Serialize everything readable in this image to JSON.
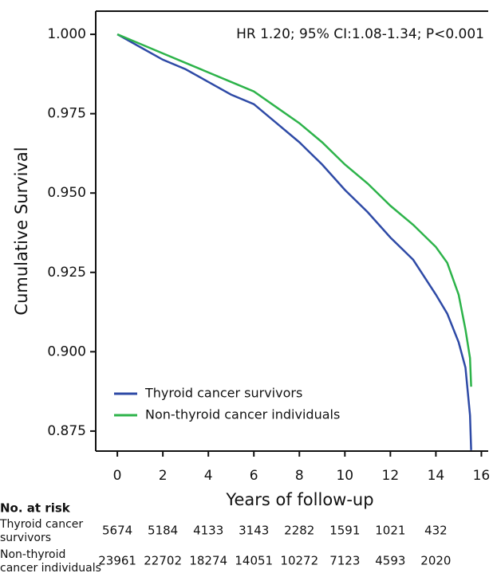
{
  "chart_data": {
    "type": "line",
    "annotation": "HR 1.20; 95% CI:1.08-1.34; P<0.001",
    "xlabel": "Years of follow-up",
    "ylabel": "Cumulative Survival",
    "x": [
      0,
      1,
      2,
      3,
      4,
      5,
      6,
      7,
      8,
      9,
      10,
      11,
      12,
      13,
      14,
      14.5,
      15,
      15.3,
      15.5,
      15.55
    ],
    "series": [
      {
        "name": "Thyroid cancer survivors",
        "color": "#2e4aa6",
        "values": [
          1.0,
          0.996,
          0.992,
          0.989,
          0.985,
          0.981,
          0.978,
          0.972,
          0.966,
          0.959,
          0.951,
          0.944,
          0.936,
          0.929,
          0.918,
          0.912,
          0.903,
          0.895,
          0.88,
          0.869
        ]
      },
      {
        "name": "Non-thyroid cancer individuals",
        "color": "#2db34a",
        "values": [
          1.0,
          0.997,
          0.994,
          0.991,
          0.988,
          0.985,
          0.982,
          0.977,
          0.972,
          0.966,
          0.959,
          0.953,
          0.946,
          0.94,
          0.933,
          0.928,
          0.918,
          0.907,
          0.898,
          0.889
        ]
      }
    ],
    "xlim": [
      -0.95,
      16.3
    ],
    "xticks": [
      0,
      2,
      4,
      6,
      8,
      10,
      12,
      14,
      16
    ],
    "ylim": [
      0.8687,
      1.0073
    ],
    "yticks": [
      {
        "value": 0.875,
        "label": "0.875"
      },
      {
        "value": 0.9,
        "label": "0.900"
      },
      {
        "value": 0.925,
        "label": "0.925"
      },
      {
        "value": 0.95,
        "label": "0.950"
      },
      {
        "value": 0.975,
        "label": "0.975"
      },
      {
        "value": 1,
        "label": "1.000"
      }
    ],
    "legend": "lower left",
    "risk_table": {
      "title": "No. at risk",
      "times": [
        0,
        2,
        4,
        6,
        8,
        10,
        12,
        14
      ],
      "rows": [
        {
          "label": [
            "Thyroid cancer",
            "survivors"
          ],
          "counts": [
            5674,
            5184,
            4133,
            3143,
            2282,
            1591,
            1021,
            432
          ]
        },
        {
          "label": [
            "Non-thyroid",
            "cancer individuals"
          ],
          "counts": [
            23961,
            22702,
            18274,
            14051,
            10272,
            7123,
            4593,
            2020
          ]
        }
      ]
    }
  }
}
